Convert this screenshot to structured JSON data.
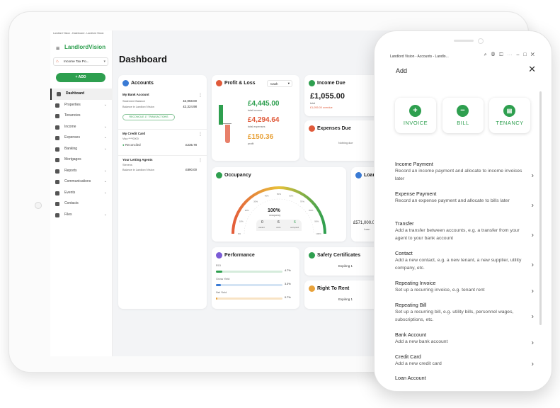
{
  "tablet": {
    "breadcrumb": "Landlord Vision - Dashboard - Landlord Vision",
    "logo": "LandlordVision",
    "tax_select": "Income Tax Po...",
    "add_button": "+ ADD",
    "nav": [
      {
        "label": "Dashboard",
        "chev": "",
        "active": true
      },
      {
        "label": "Properties",
        "chev": "⌄"
      },
      {
        "label": "Tenancies",
        "chev": ""
      },
      {
        "label": "Income",
        "chev": "⌄"
      },
      {
        "label": "Expenses",
        "chev": "⌄"
      },
      {
        "label": "Banking",
        "chev": "⌄"
      },
      {
        "label": "Mortgages",
        "chev": ""
      },
      {
        "label": "Reports",
        "chev": "⌄"
      },
      {
        "label": "Communications",
        "chev": "⌄"
      },
      {
        "label": "Events",
        "chev": "⌄"
      },
      {
        "label": "Contacts",
        "chev": ""
      },
      {
        "label": "Files",
        "chev": "⌄"
      }
    ],
    "title": "Dashboard",
    "accounts": {
      "title": "Accounts",
      "bank": {
        "name": "My Bank Account",
        "statement_label": "Statement Balance",
        "statement_value": "£2,958.00",
        "lv_label": "Balance in Landlord Vision",
        "lv_value": "£2,324.98",
        "reconcile": "RECONCILE 17 TRANSACTIONS"
      },
      "credit": {
        "name": "My Credit Card",
        "sub": "Visa ****0000",
        "status": "Reconciled",
        "value": "£235.78"
      },
      "agents": {
        "name": "Your Letting Agents",
        "sub": "Stevens",
        "lv_label": "Balance in Landlord Vision",
        "value": "£890.00"
      }
    },
    "pl": {
      "title": "Profit & Loss",
      "select": "Cash",
      "income": "£4,445.00",
      "income_label": "total income",
      "expenses": "£4,294.64",
      "expenses_label": "total expenses",
      "profit": "£150.36",
      "profit_label": "profit"
    },
    "income_due": {
      "title": "Income Due",
      "amount": "£1,055.00",
      "total_label": "total",
      "overdue": "£1,055.00 overdue"
    },
    "expenses_due": {
      "title": "Expenses Due",
      "empty": "Nothing due"
    },
    "occupancy": {
      "title": "Occupancy",
      "percent": "100%",
      "label": "occupancy",
      "vacant": "0",
      "vacant_label": "vacant",
      "units": "6",
      "units_label": "units",
      "occupied": "6",
      "occupied_label": "occupied",
      "ticks": [
        "0%",
        "10%",
        "20%",
        "30%",
        "40%",
        "50%",
        "60%",
        "70%",
        "80%",
        "90%",
        "100%"
      ]
    },
    "loan": {
      "title": "Loan-to-",
      "value": "£571,000.00",
      "label": "Loan"
    },
    "performance": {
      "title": "Performance",
      "roi": "ROI",
      "roi_value": "4.7%",
      "gross": "Gross Yield",
      "gross_value": "3.3%",
      "net": "Net Yield",
      "net_value": "0.7%",
      "levels": {
        "roi": 0.1,
        "gross": 0.07,
        "net": 0.02
      }
    },
    "safety": {
      "title": "Safety Certificates",
      "value": "Expiring 1"
    },
    "rtr": {
      "title": "Right To Rent",
      "value": "Expiring 1"
    }
  },
  "phone": {
    "window_title": "Landlord Vision - Accounts - Landlo...",
    "heading": "Add",
    "quick_actions": [
      {
        "label": "INVOICE",
        "icon": "+"
      },
      {
        "label": "BILL",
        "icon": "−"
      },
      {
        "label": "TENANCY",
        "icon": "▤"
      }
    ],
    "items": [
      {
        "title": "Income Payment",
        "desc": "Record an income payment and allocate to income invoices later"
      },
      {
        "title": "Expense Payment",
        "desc": "Record an expense payment and allocate to bills later"
      },
      {
        "title": "Transfer",
        "desc": "Add a transfer between accounts, e.g. a transfer from your agent to your bank account"
      },
      {
        "title": "Contact",
        "desc": "Add a new contact, e.g. a new tenant, a new supplier, utility company, etc."
      },
      {
        "title": "Repeating Invoice",
        "desc": "Set up a recurring invoice, e.g. tenant rent"
      },
      {
        "title": "Repeating Bill",
        "desc": "Set up a recurring bill, e.g. utility bills, personnel wages, subscriptions, etc."
      },
      {
        "title": "Bank Account",
        "desc": "Add a new bank account"
      },
      {
        "title": "Credit Card",
        "desc": "Add a new credit card"
      },
      {
        "title": "Loan Account",
        "desc": ""
      }
    ]
  },
  "colors": {
    "brand": "#2e9f4f",
    "income": "#2e9f4f",
    "expense": "#e05a3a",
    "profit": "#e8a23a"
  }
}
